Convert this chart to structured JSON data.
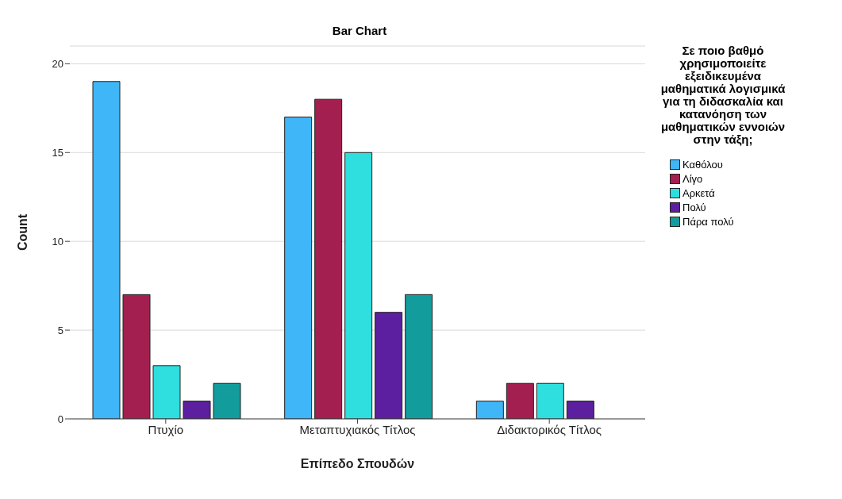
{
  "chart_data": {
    "type": "bar",
    "title": "Bar Chart",
    "xlabel": "Επίπεδο Σπουδών",
    "ylabel": "Count",
    "legend_title": "Σε ποιο βαθμό χρησιμοποιείτε εξειδικευμένα μαθηματικά λογισμικά για τη διδασκαλία και κατανόηση των μαθηματικών εννοιών στην τάξη;",
    "categories": [
      "Πτυχίο",
      "Μεταπτυχιακός Τίτλος",
      "Διδακτορικός Τίτλος"
    ],
    "series": [
      {
        "name": "Καθόλου",
        "color": "#3fb6f7",
        "values": [
          19,
          17,
          1
        ]
      },
      {
        "name": "Λίγο",
        "color": "#a31f4f",
        "values": [
          7,
          18,
          2
        ]
      },
      {
        "name": "Αρκετά",
        "color": "#2fdede",
        "values": [
          3,
          15,
          2
        ]
      },
      {
        "name": "Πολύ",
        "color": "#5b1fa0",
        "values": [
          1,
          6,
          1
        ]
      },
      {
        "name": "Πάρα πολύ",
        "color": "#129c9c",
        "values": [
          2,
          7,
          0
        ]
      }
    ],
    "ylim": [
      0,
      21
    ],
    "yticks": [
      0,
      5,
      10,
      15,
      20
    ],
    "grid": "y",
    "legend": "right"
  }
}
